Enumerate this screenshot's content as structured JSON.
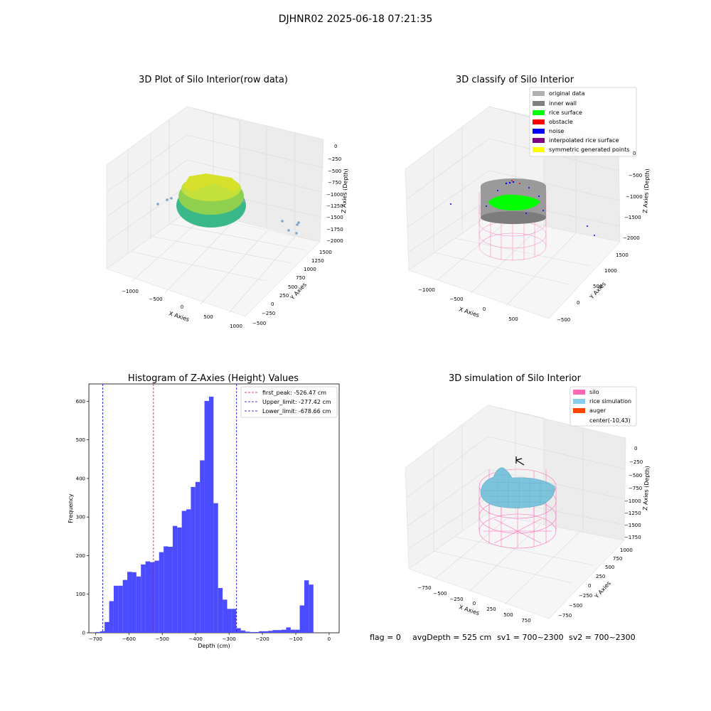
{
  "page": {
    "suptitle": "DJHNR02 2025-06-18 07:21:35",
    "footer": {
      "flag": "flag = 0",
      "avgdepth": "avgDepth = 525 cm",
      "sv1": "sv1 = 700~2300",
      "sv2": "sv2 = 700~2300"
    }
  },
  "panels": {
    "raw": {
      "title": "3D Plot of Silo Interior(row data)",
      "xlabel": "X Axies",
      "ylabel": "Y Axies",
      "zlabel": "Z Axies (Depth)",
      "xticks": [
        "−1000",
        "−500",
        "0",
        "500",
        "1000"
      ],
      "yticks": [
        "−500",
        "−250",
        "0",
        "250",
        "500",
        "750",
        "1000",
        "1250",
        "1500"
      ],
      "zticks": [
        "0",
        "−250",
        "−500",
        "−750",
        "−1000",
        "−1250",
        "−1500",
        "−1750",
        "−2000"
      ]
    },
    "classify": {
      "title": "3D classify of Silo Interior",
      "xlabel": "X Axies",
      "ylabel": "Y Axies",
      "zlabel": "Z Axies (Depth)",
      "xticks": [
        "−1000",
        "−500",
        "0",
        "500"
      ],
      "yticks": [
        "−500",
        "0",
        "500",
        "1000",
        "1500"
      ],
      "zticks": [
        "0",
        "−500",
        "−1000",
        "−1500",
        "−2000"
      ],
      "legend": [
        {
          "label": "original data",
          "color": "#b0b0b0"
        },
        {
          "label": "inner wall",
          "color": "#808080"
        },
        {
          "label": "rice surface",
          "color": "#00ff00"
        },
        {
          "label": "obstacle",
          "color": "#ff0000"
        },
        {
          "label": "noise",
          "color": "#0000ff"
        },
        {
          "label": "interpolated rice surface",
          "color": "#800080"
        },
        {
          "label": "symmetric generated points",
          "color": "#ffff00"
        }
      ]
    },
    "simulation": {
      "title": "3D simulation of Silo Interior",
      "xlabel": "X Axies",
      "ylabel": "Y Axies",
      "zlabel": "Z Axies (Depth)",
      "xticks": [
        "−750",
        "−500",
        "−250",
        "0",
        "250",
        "500",
        "750"
      ],
      "yticks": [
        "−750",
        "−500",
        "−250",
        "0",
        "250",
        "500",
        "750",
        "1000"
      ],
      "zticks": [
        "0",
        "−250",
        "−500",
        "−750",
        "−1000",
        "−1250",
        "−1500",
        "−1750"
      ],
      "legend": [
        {
          "label": "silo",
          "color": "#ff69b4"
        },
        {
          "label": "rice simulation",
          "color": "#87ceeb"
        },
        {
          "label": "auger",
          "color": "#ff4500"
        },
        {
          "label": "center(-10,43)",
          "color": ""
        }
      ]
    }
  },
  "chart_data": {
    "type": "bar",
    "title": "Histogram of Z-Axies (Height) Values",
    "xlabel": "Depth (cm)",
    "ylabel": "Frequency",
    "xlim": [
      -720,
      30
    ],
    "ylim": [
      0,
      645
    ],
    "bin_width": 13.6,
    "bin_start": -700,
    "values": [
      2,
      4,
      28,
      82,
      122,
      122,
      137,
      158,
      157,
      146,
      177,
      185,
      183,
      187,
      209,
      224,
      223,
      277,
      273,
      316,
      320,
      378,
      391,
      447,
      601,
      612,
      336,
      116,
      86,
      62,
      62,
      12,
      6,
      3,
      2,
      2,
      4,
      4,
      5,
      7,
      7,
      8,
      14,
      8,
      8,
      71,
      136,
      125
    ],
    "color": "#4b4bff",
    "xticks": [
      -700,
      -600,
      -500,
      -400,
      -300,
      -200,
      -100,
      0
    ],
    "xtick_labels": [
      "−700",
      "−600",
      "−500",
      "−400",
      "−300",
      "−200",
      "−100",
      "0"
    ],
    "yticks": [
      0,
      100,
      200,
      300,
      400,
      500,
      600
    ],
    "ytick_labels": [
      "0",
      "100",
      "200",
      "300",
      "400",
      "500",
      "600"
    ],
    "vlines": [
      {
        "x": -526.47,
        "label": "first_peak: -526.47 cm",
        "color": "#ff0000"
      },
      {
        "x": -277.42,
        "label": "Upper_limit: -277.42 cm",
        "color": "#0000cc"
      },
      {
        "x": -678.66,
        "label": "Lower_limit: -678.66 cm",
        "color": "#0000cc"
      }
    ],
    "legend_position": "top-right",
    "grid": false
  }
}
